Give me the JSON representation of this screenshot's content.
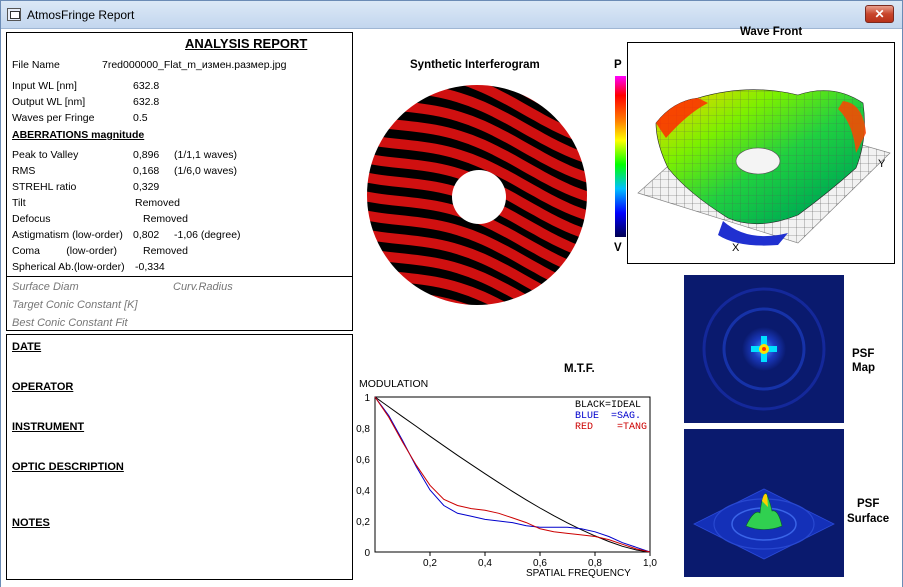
{
  "window": {
    "title": "AtmosFringe  Report",
    "close_label": "✕"
  },
  "report": {
    "title": "ANALYSIS  REPORT",
    "file_name_label": "File Name",
    "file_name_value": "7red000000_Flat_m_измен.размер.jpg",
    "input_wl_label": "Input  WL [nm]",
    "input_wl_value": "632.8",
    "output_wl_label": "Output WL [nm]",
    "output_wl_value": "632.8",
    "waves_per_fringe_label": "Waves per Fringe",
    "waves_per_fringe_value": "0.5",
    "aberrations_heading": "ABERRATIONS magnitude",
    "ptv_label": "Peak to Valley",
    "ptv_value": "0,896",
    "ptv_waves": "(1/1,1 waves)",
    "rms_label": "RMS",
    "rms_value": "0,168",
    "rms_waves": "(1/6,0 waves)",
    "strehl_label": "STREHL ratio",
    "strehl_value": "0,329",
    "tilt_label": "Tilt",
    "tilt_value": "Removed",
    "defocus_label": "Defocus",
    "defocus_value": "Removed",
    "astig_label": "Astigmatism  (low-order)",
    "astig_value": "0,802",
    "astig_angle": "-1,06  (degree)",
    "coma_label": "Coma         (low-order)",
    "coma_value": "Removed",
    "spherical_label": "Spherical Ab.(low-order)",
    "spherical_value": "-0,334",
    "surface_diam_label": "Surface Diam",
    "curv_radius_label": "Curv.Radius",
    "target_conic_label": "Target Conic Constant [K]",
    "best_conic_label": "Best Conic Constant Fit"
  },
  "info": {
    "date": "DATE",
    "operator": "OPERATOR",
    "instrument": "INSTRUMENT",
    "optic_description": "OPTIC DESCRIPTION",
    "notes": "NOTES"
  },
  "interferogram": {
    "title": "Synthetic Interferogram"
  },
  "colorbar": {
    "top_label": "P",
    "bottom_label": "V"
  },
  "wavefront": {
    "title": "Wave Front",
    "x_label": "X",
    "y_label": "Y"
  },
  "psf": {
    "map_label_1": "PSF",
    "map_label_2": "Map",
    "surface_label_1": "PSF",
    "surface_label_2": "Surface"
  },
  "colors": {
    "fringe": "#d01010",
    "background": "#ffffff",
    "psf_bg": "#0a1a6e"
  },
  "chart_data": {
    "type": "line",
    "title": "M.T.F.",
    "ylabel": "MODULATION",
    "xlabel": "SPATIAL FREQUENCY",
    "xlim": [
      0,
      1
    ],
    "ylim": [
      0,
      1
    ],
    "x_ticks": [
      "0,2",
      "0,4",
      "0,6",
      "0,8",
      "1,0"
    ],
    "y_ticks": [
      "0",
      "0,2",
      "0,4",
      "0,6",
      "0,8",
      "1"
    ],
    "legend": [
      "BLACK=IDEAL",
      "BLUE  =SAG.",
      "RED    =TANG"
    ],
    "legend_position": "top-right",
    "x": [
      0,
      0.05,
      0.1,
      0.15,
      0.2,
      0.25,
      0.3,
      0.35,
      0.4,
      0.45,
      0.5,
      0.55,
      0.6,
      0.65,
      0.7,
      0.75,
      0.8,
      0.85,
      0.9,
      0.95,
      1.0
    ],
    "series": [
      {
        "name": "BLACK=IDEAL",
        "color": "#000000",
        "values": [
          1.0,
          0.936,
          0.873,
          0.81,
          0.747,
          0.685,
          0.624,
          0.564,
          0.505,
          0.447,
          0.391,
          0.336,
          0.284,
          0.234,
          0.188,
          0.144,
          0.104,
          0.068,
          0.037,
          0.013,
          0.0
        ]
      },
      {
        "name": "BLUE  =SAG.",
        "color": "#0000cc",
        "values": [
          1.0,
          0.88,
          0.72,
          0.55,
          0.4,
          0.3,
          0.25,
          0.23,
          0.21,
          0.2,
          0.19,
          0.17,
          0.16,
          0.16,
          0.16,
          0.15,
          0.13,
          0.1,
          0.06,
          0.03,
          0.0
        ]
      },
      {
        "name": "RED    =TANG",
        "color": "#cc0000",
        "values": [
          1.0,
          0.87,
          0.71,
          0.56,
          0.43,
          0.34,
          0.3,
          0.28,
          0.27,
          0.25,
          0.22,
          0.19,
          0.15,
          0.13,
          0.12,
          0.11,
          0.1,
          0.08,
          0.05,
          0.02,
          0.0
        ]
      }
    ]
  }
}
